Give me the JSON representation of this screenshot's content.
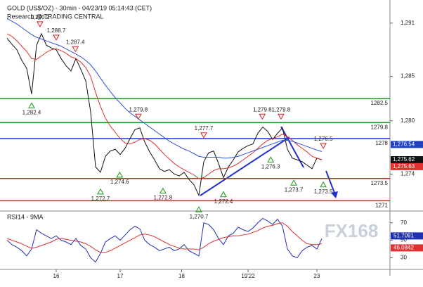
{
  "chart_data": {
    "type": "line",
    "title": "GOLD (US$/OZ) - 30min - 04/23/19 05:14:43 (CET)",
    "subtitle": "Research @ TRADING CENTRAL",
    "watermark": "FX168",
    "xlim": [
      0,
      77
    ],
    "xticks": [
      {
        "value": 10,
        "label": "16"
      },
      {
        "value": 23,
        "label": "17"
      },
      {
        "value": 35.5,
        "label": "18"
      },
      {
        "value": 49,
        "label": "19'22"
      },
      {
        "value": 63,
        "label": "23"
      }
    ],
    "ylim": [
      1270,
      1293.2
    ],
    "yticks": [
      {
        "value": 1274,
        "label": "1,274"
      },
      {
        "value": 1280,
        "label": "1,280"
      },
      {
        "value": 1285,
        "label": "1,285"
      },
      {
        "value": 1291,
        "label": "1,291"
      }
    ],
    "series": [
      {
        "name": "Price",
        "color": "#111111",
        "values": [
          1289.3,
          1288.6,
          1288.0,
          1286.8,
          1285.9,
          1283.0,
          1288.5,
          1289.8,
          1288.5,
          1288.2,
          1288.0,
          1287.0,
          1286.2,
          1285.6,
          1287.0,
          1285.8,
          1284.5,
          1281.0,
          1274.8,
          1274.2,
          1276.0,
          1276.6,
          1276.8,
          1276.2,
          1276.9,
          1278.0,
          1279.0,
          1279.2,
          1277.6,
          1276.5,
          1275.6,
          1274.6,
          1274.3,
          1274.5,
          1274.0,
          1273.8,
          1274.2,
          1273.4,
          1272.8,
          1271.6,
          1275.4,
          1276.4,
          1276.6,
          1275.2,
          1273.6,
          1274.8,
          1275.6,
          1276.5,
          1276.9,
          1277.2,
          1277.4,
          1278.6,
          1279.3,
          1278.8,
          1277.9,
          1278.6,
          1279.2,
          1276.8,
          1275.8,
          1275.6,
          1275.4,
          1275.0,
          1274.6,
          1275.8,
          1275.6
        ]
      },
      {
        "name": "MA fast",
        "color": "#e03030",
        "values": [
          1289.8,
          1289.5,
          1289.0,
          1288.4,
          1287.8,
          1287.0,
          1286.9,
          1287.3,
          1287.7,
          1288.0,
          1288.1,
          1287.9,
          1287.6,
          1287.2,
          1287.0,
          1286.6,
          1286.0,
          1285.0,
          1283.2,
          1281.6,
          1280.3,
          1279.4,
          1278.7,
          1278.0,
          1277.5,
          1277.4,
          1277.6,
          1277.9,
          1278.0,
          1277.8,
          1277.4,
          1276.8,
          1276.2,
          1275.7,
          1275.2,
          1274.8,
          1274.5,
          1274.2,
          1273.9,
          1273.5,
          1273.6,
          1274.0,
          1274.4,
          1274.6,
          1274.6,
          1274.7,
          1274.9,
          1275.2,
          1275.6,
          1276.0,
          1276.4,
          1276.9,
          1277.4,
          1277.8,
          1278.0,
          1278.2,
          1278.5,
          1278.2,
          1277.8,
          1277.3,
          1276.9,
          1276.5,
          1276.0,
          1275.8,
          1275.63
        ]
      },
      {
        "name": "MA slow",
        "color": "#3050d8",
        "values": [
          1291.5,
          1291.2,
          1290.9,
          1290.5,
          1290.1,
          1289.7,
          1289.4,
          1289.2,
          1289.0,
          1288.8,
          1288.6,
          1288.4,
          1288.1,
          1287.8,
          1287.5,
          1287.2,
          1286.8,
          1286.3,
          1285.6,
          1284.8,
          1284.0,
          1283.3,
          1282.6,
          1282.0,
          1281.4,
          1280.9,
          1280.5,
          1280.1,
          1279.7,
          1279.3,
          1278.9,
          1278.5,
          1278.1,
          1277.7,
          1277.4,
          1277.1,
          1276.8,
          1276.6,
          1276.3,
          1276.0,
          1275.9,
          1275.9,
          1275.9,
          1275.9,
          1275.8,
          1275.8,
          1275.9,
          1276.0,
          1276.2,
          1276.4,
          1276.6,
          1276.8,
          1277.0,
          1277.2,
          1277.4,
          1277.6,
          1277.8,
          1277.8,
          1277.7,
          1277.5,
          1277.3,
          1277.1,
          1276.9,
          1276.7,
          1276.54
        ]
      }
    ],
    "levels": [
      {
        "value": 1282.5,
        "color": "#1a9a1a"
      },
      {
        "value": 1279.8,
        "color": "#1a9a1a"
      },
      {
        "value": 1278,
        "color": "#2030e0"
      },
      {
        "value": 1273.5,
        "color": "#e02020"
      },
      {
        "value": 1271,
        "color": "#e02020"
      }
    ],
    "price_tags": [
      {
        "value": 1276.54,
        "label": "1,276.54",
        "color": "#2040c0"
      },
      {
        "value": 1275.62,
        "label": "1,275.62",
        "color": "#111111"
      },
      {
        "value": 1275.63,
        "label": "1,275.63",
        "color": "#e03030"
      }
    ],
    "highs": [
      {
        "x": 6.7,
        "value": 1290.2,
        "label": "1,290.2"
      },
      {
        "x": 10,
        "value": 1288.7,
        "label": "1,288.7"
      },
      {
        "x": 13.9,
        "value": 1287.4,
        "label": "1,287.4"
      },
      {
        "x": 26.7,
        "value": 1279.8,
        "label": "1,279.8"
      },
      {
        "x": 40,
        "value": 1277.7,
        "label": "1,277.7"
      },
      {
        "x": 51.9,
        "value": 1279.8,
        "label": "1,279.8"
      },
      {
        "x": 55.7,
        "value": 1279.8,
        "label": "1,279.8"
      },
      {
        "x": 64.3,
        "value": 1276.5,
        "label": "1,276.5"
      }
    ],
    "lows": [
      {
        "x": 5,
        "value": 1282.4,
        "label": "1,282.4"
      },
      {
        "x": 19,
        "value": 1272.7,
        "label": "1,272.7"
      },
      {
        "x": 22.9,
        "value": 1274.6,
        "label": "1,274.6"
      },
      {
        "x": 31.7,
        "value": 1272.8,
        "label": "1,272.8"
      },
      {
        "x": 39,
        "value": 1270.7,
        "label": "1,270.7"
      },
      {
        "x": 44,
        "value": 1272.4,
        "label": "1,272.4"
      },
      {
        "x": 53.6,
        "value": 1276.3,
        "label": "1,276.3"
      },
      {
        "x": 58.3,
        "value": 1273.7,
        "label": "1,273.7"
      },
      {
        "x": 64.3,
        "value": 1273.5,
        "label": "1,273.5"
      }
    ],
    "rsi": {
      "title": "RSI14 - 9MA",
      "ylim": [
        15,
        81
      ],
      "yticks": [
        30,
        50,
        70
      ],
      "series": [
        {
          "name": "RSI14",
          "color": "#2030b0",
          "values": [
            50,
            45,
            42,
            38,
            32,
            40,
            62,
            58,
            55,
            52,
            55,
            50,
            48,
            45,
            52,
            44,
            40,
            30,
            25,
            35,
            48,
            52,
            55,
            50,
            56,
            62,
            66,
            63,
            50,
            45,
            42,
            38,
            40,
            42,
            38,
            40,
            45,
            38,
            35,
            32,
            70,
            68,
            62,
            52,
            45,
            55,
            58,
            65,
            62,
            60,
            64,
            70,
            75,
            72,
            68,
            74,
            66,
            40,
            32,
            30,
            38,
            42,
            44,
            40,
            51.7091
          ]
        },
        {
          "name": "9MA",
          "color": "#e03030",
          "values": [
            52,
            50,
            48,
            46,
            43,
            41,
            42,
            44,
            46,
            48,
            51,
            52,
            51,
            50,
            49,
            48,
            46,
            43,
            39,
            36,
            36,
            38,
            41,
            44,
            47,
            50,
            53,
            56,
            57,
            56,
            54,
            51,
            48,
            45,
            43,
            41,
            40,
            40,
            40,
            39,
            42,
            46,
            49,
            51,
            53,
            54,
            55,
            55,
            56,
            57,
            59,
            61,
            64,
            66,
            67,
            69,
            70,
            66,
            60,
            55,
            50,
            46,
            45,
            45,
            46.0842
          ]
        }
      ]
    }
  }
}
